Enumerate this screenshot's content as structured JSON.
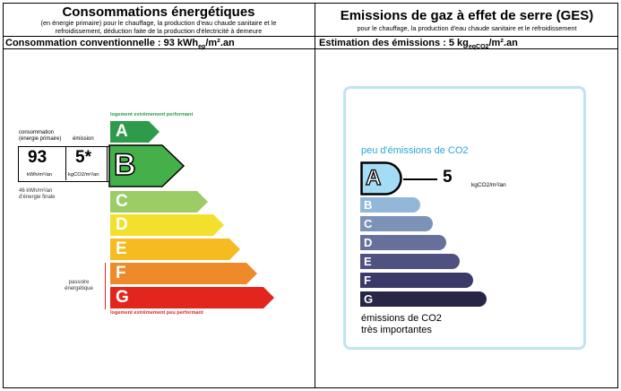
{
  "energy": {
    "title": "Consommations énergétiques",
    "subtitle_1": "(en énergie primaire) pour le chauffage, la production d'eau chaude sanitaire et le",
    "subtitle_2": "refroidissement, déduction faite de la production d'électricité à demeure",
    "consumption_label": "Consommation conventionnelle : 93 kWh",
    "consumption_sub": "ep",
    "consumption_unit": "/m².an",
    "top_note": "logement extrêmement performant",
    "bottom_note": "logement extrêmement peu performant",
    "col_consumption_1": "consommation",
    "col_consumption_2": "(énergie primaire)",
    "col_emission": "émission",
    "value": "93",
    "value_unit": "kWh/m²/an",
    "emission_value": "5*",
    "emission_unit": "kgCO2/m²/an",
    "final_energy_1": "46 kWh/m²/an",
    "final_energy_2": "d'énergie finale",
    "passoire_1": "passoire",
    "passoire_2": "énergétique",
    "current_class": "B",
    "classes": [
      {
        "letter": "A",
        "color": "#2e9b4a"
      },
      {
        "letter": "B",
        "color": "#45b04a"
      },
      {
        "letter": "C",
        "color": "#9ccc65"
      },
      {
        "letter": "D",
        "color": "#f3e02c"
      },
      {
        "letter": "E",
        "color": "#f5bb20"
      },
      {
        "letter": "F",
        "color": "#ee8a2a"
      },
      {
        "letter": "G",
        "color": "#e2261e"
      }
    ]
  },
  "ges": {
    "title": "Emissions de gaz à effet de serre (GES)",
    "subtitle": "pour le chauffage, la production d'eau chaude sanitaire et le refroidissement",
    "estimation_label": "Estimation des émissions : 5 kg",
    "estimation_sub": "eqCO2",
    "estimation_unit": "/m².an",
    "top_note": "peu d'émissions de CO2",
    "bottom_note_1": "émissions de CO2",
    "bottom_note_2": "très importantes",
    "value": "5",
    "value_unit": "kgCO2/m²/an",
    "current_class": "A",
    "classes": [
      {
        "letter": "A",
        "color": "#a4dbf5"
      },
      {
        "letter": "B",
        "color": "#93b7d9"
      },
      {
        "letter": "C",
        "color": "#7d92b8"
      },
      {
        "letter": "D",
        "color": "#66709b"
      },
      {
        "letter": "E",
        "color": "#4f5281"
      },
      {
        "letter": "F",
        "color": "#3a3a69"
      },
      {
        "letter": "G",
        "color": "#272646"
      }
    ]
  }
}
